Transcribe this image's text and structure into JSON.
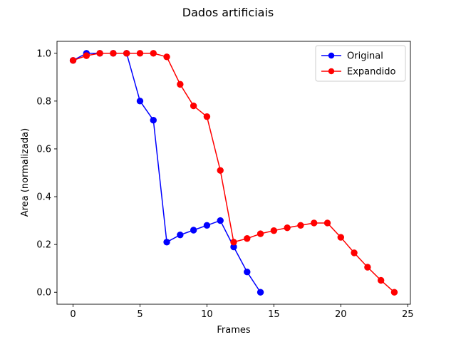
{
  "chart_data": {
    "type": "line",
    "title": "Dados artificiais",
    "xlabel": "Frames",
    "ylabel": "Area (normalizada)",
    "xlim": [
      -1.2,
      25.2
    ],
    "ylim": [
      -0.05,
      1.05
    ],
    "xticks": [
      0,
      5,
      10,
      15,
      20,
      25
    ],
    "yticks": [
      0.0,
      0.2,
      0.4,
      0.6,
      0.8,
      1.0
    ],
    "grid": false,
    "legend_position": "top-right",
    "series": [
      {
        "name": "Original",
        "color": "#0000ff",
        "marker": "circle",
        "x": [
          0,
          1,
          2,
          3,
          4,
          5,
          6,
          7,
          8,
          9,
          10,
          11,
          12,
          13,
          14
        ],
        "y": [
          0.97,
          1.0,
          1.0,
          1.0,
          1.0,
          0.8,
          0.72,
          0.21,
          0.24,
          0.26,
          0.28,
          0.3,
          0.19,
          0.085,
          0.0
        ]
      },
      {
        "name": "Expandido",
        "color": "#ff0000",
        "marker": "circle",
        "x": [
          0,
          1,
          2,
          3,
          4,
          5,
          6,
          7,
          8,
          9,
          10,
          11,
          12,
          13,
          14,
          15,
          16,
          17,
          18,
          19,
          20,
          21,
          22,
          23,
          24
        ],
        "y": [
          0.97,
          0.99,
          1.0,
          1.0,
          1.0,
          1.0,
          1.0,
          0.985,
          0.87,
          0.78,
          0.735,
          0.51,
          0.21,
          0.225,
          0.245,
          0.258,
          0.27,
          0.28,
          0.29,
          0.29,
          0.23,
          0.165,
          0.105,
          0.05,
          0.0
        ]
      }
    ]
  }
}
